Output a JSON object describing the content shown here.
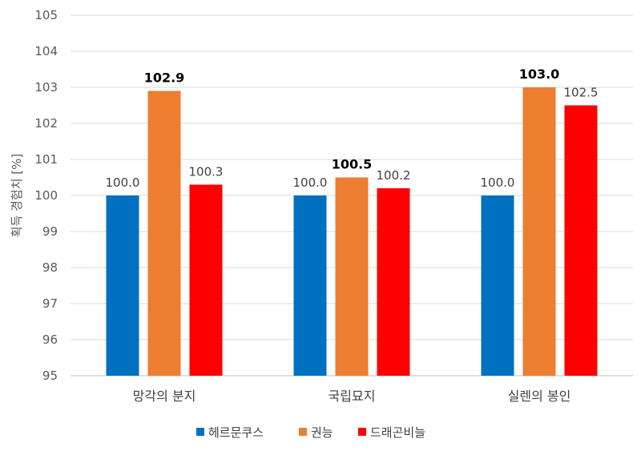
{
  "chart_data": {
    "type": "bar",
    "categories": [
      "망각의 분지",
      "국립묘지",
      "실렌의 봉인"
    ],
    "series": [
      {
        "name": "헤르문쿠스",
        "color": "#0070C0",
        "values": [
          100.0,
          100.0,
          100.0
        ]
      },
      {
        "name": "권능",
        "color": "#ED7D31",
        "values": [
          102.9,
          100.5,
          103.0
        ]
      },
      {
        "name": "드래곤비늘",
        "color": "#FF0000",
        "values": [
          100.3,
          100.2,
          102.5
        ]
      }
    ],
    "data_labels": [
      [
        "100.0",
        "100.0",
        "100.0"
      ],
      [
        "102.9",
        "100.5",
        "103.0"
      ],
      [
        "100.3",
        "100.2",
        "102.5"
      ]
    ],
    "bold_labels": [
      [
        false,
        false,
        false
      ],
      [
        true,
        true,
        true
      ],
      [
        false,
        false,
        false
      ]
    ],
    "ylabel": "획득 경험치 [%]",
    "ylim": [
      95,
      105
    ],
    "yticks": [
      "95",
      "96",
      "97",
      "98",
      "99",
      "100",
      "101",
      "102",
      "103",
      "104",
      "105"
    ],
    "grid": true,
    "legend_position": "bottom"
  }
}
